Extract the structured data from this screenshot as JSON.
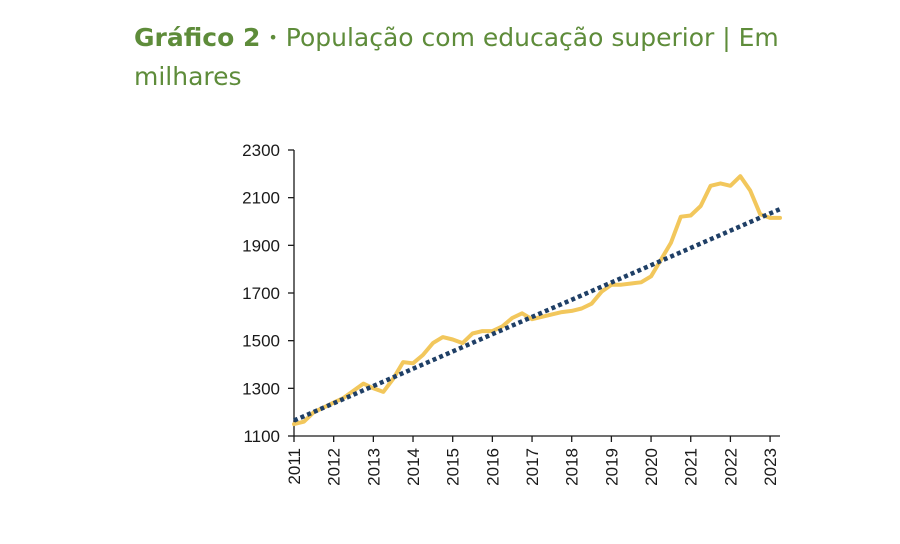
{
  "figure": {
    "label": "Gráfico 2",
    "separator": "•",
    "title": "População com educação superior | Em milhares"
  },
  "colors": {
    "title": "#5e8c3a",
    "series": "#f2c75c",
    "trend": "#1f3f66",
    "axis": "#1a1a1a"
  },
  "chart_data": {
    "type": "line",
    "title": "População com educação superior | Em milhares",
    "xlabel": "",
    "ylabel": "",
    "xlim": [
      2011,
      2023.25
    ],
    "ylim": [
      1100,
      2300
    ],
    "y_ticks": [
      1100,
      1300,
      1500,
      1700,
      1900,
      2100,
      2300
    ],
    "x_tick_labels": [
      "2011",
      "2012",
      "2013",
      "2014",
      "2015",
      "2016",
      "2017",
      "2018",
      "2019",
      "2020",
      "2021",
      "2022",
      "2023"
    ],
    "grid": false,
    "legend": "none",
    "series": [
      {
        "style": "solid",
        "x": [
          2011.0,
          2011.25,
          2011.5,
          2011.75,
          2012.0,
          2012.25,
          2012.5,
          2012.75,
          2013.0,
          2013.25,
          2013.5,
          2013.75,
          2014.0,
          2014.25,
          2014.5,
          2014.75,
          2015.0,
          2015.25,
          2015.5,
          2015.75,
          2016.0,
          2016.25,
          2016.5,
          2016.75,
          2017.0,
          2017.25,
          2017.5,
          2017.75,
          2018.0,
          2018.25,
          2018.5,
          2018.75,
          2019.0,
          2019.25,
          2019.5,
          2019.75,
          2020.0,
          2020.25,
          2020.5,
          2020.75,
          2021.0,
          2021.25,
          2021.5,
          2021.75,
          2022.0,
          2022.25,
          2022.5,
          2022.75,
          2023.0,
          2023.25
        ],
        "values": [
          1150,
          1160,
          1200,
          1220,
          1240,
          1260,
          1290,
          1320,
          1300,
          1285,
          1340,
          1410,
          1405,
          1440,
          1490,
          1515,
          1505,
          1490,
          1530,
          1540,
          1540,
          1560,
          1595,
          1615,
          1590,
          1600,
          1610,
          1620,
          1625,
          1635,
          1655,
          1705,
          1735,
          1735,
          1740,
          1745,
          1770,
          1840,
          1910,
          2020,
          2025,
          2065,
          2150,
          2160,
          2150,
          2190,
          2130,
          2030,
          2015,
          2015
        ]
      },
      {
        "style": "dotted",
        "x": [
          2011.0,
          2023.25
        ],
        "values": [
          1165,
          2052
        ]
      }
    ]
  }
}
